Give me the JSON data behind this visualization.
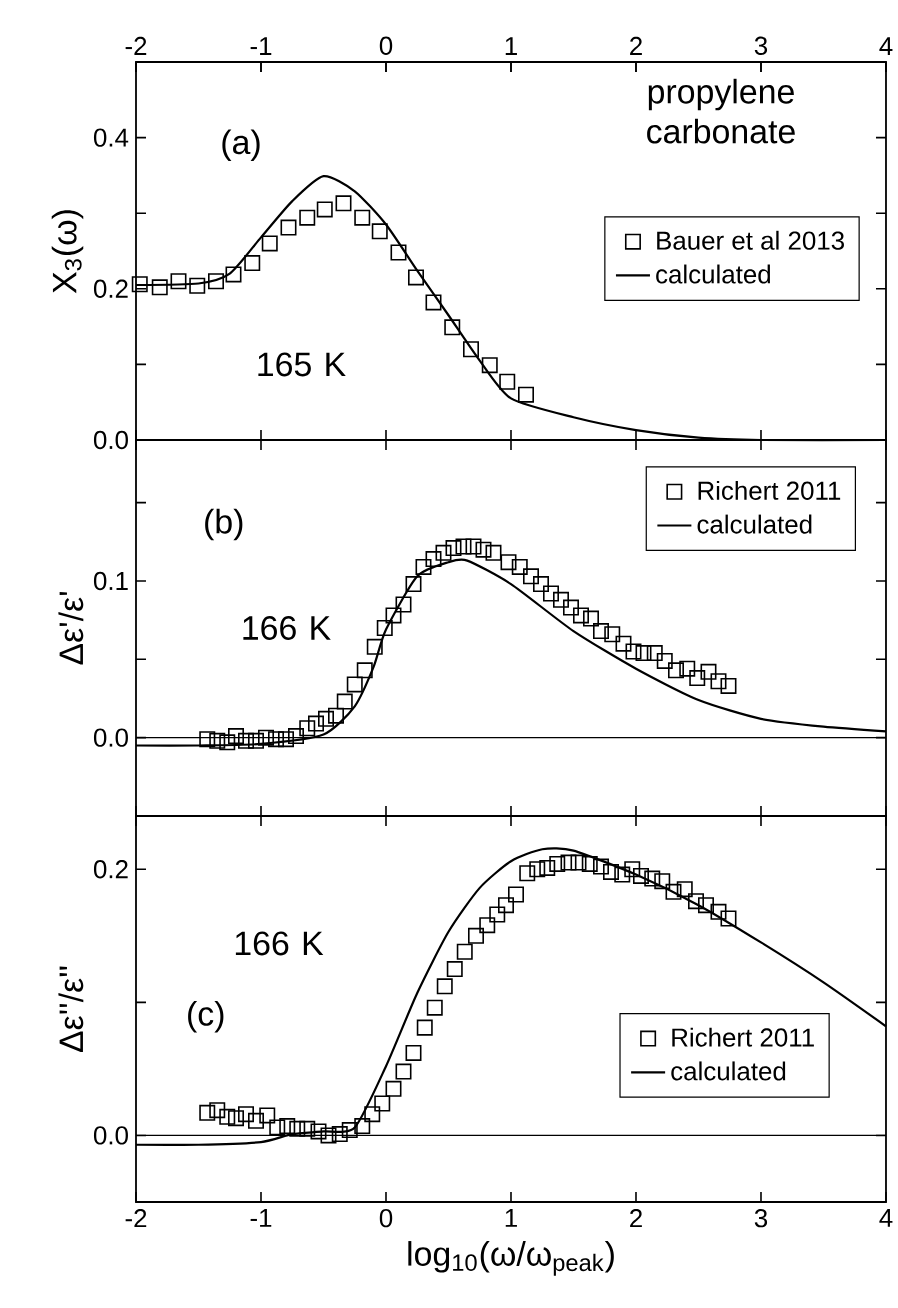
{
  "chart_data": [
    {
      "type": "scatter",
      "ylabel": "X$_{3}$(ω)",
      "xlim": [
        -2,
        4
      ],
      "xticks": [
        -2,
        -1,
        0,
        1,
        2,
        3,
        4
      ],
      "x2lim": [
        -2,
        4
      ],
      "x2ticks": [
        -2,
        -1,
        0,
        1,
        2,
        3,
        4
      ],
      "ylim": [
        0,
        0.5
      ],
      "yticks": [
        {
          "value": 0,
          "label": "0.0"
        },
        {
          "value": 0.1,
          "label": null
        },
        {
          "value": 0.2,
          "label": "0.2"
        },
        {
          "value": 0.3,
          "label": null
        },
        {
          "value": 0.4,
          "label": "0.4"
        }
      ],
      "tick_labels": "y",
      "legend": "right",
      "annotations": [
        "(a)",
        "propylene carbonate",
        "165 K"
      ],
      "series": [
        {
          "name": "Bauer et al 2013",
          "marker": "square",
          "color": "#000000",
          "x": [
            -1.97,
            -1.81,
            -1.66,
            -1.51,
            -1.36,
            -1.22,
            -1.07,
            -0.93,
            -0.78,
            -0.63,
            -0.49,
            -0.34,
            -0.19,
            -0.05,
            0.1,
            0.24,
            0.38,
            0.53,
            0.68,
            0.83,
            0.97,
            1.12
          ],
          "values": [
            0.206,
            0.202,
            0.21,
            0.204,
            0.21,
            0.219,
            0.234,
            0.26,
            0.281,
            0.294,
            0.305,
            0.313,
            0.294,
            0.276,
            0.248,
            0.215,
            0.182,
            0.149,
            0.12,
            0.099,
            0.077,
            0.06
          ]
        },
        {
          "name": "calculated",
          "type": "line",
          "marker": "none",
          "color": "#000000",
          "x": [
            -2,
            -1.5,
            -1.25,
            -1.0,
            -0.75,
            -0.5,
            -0.25,
            0,
            0.25,
            0.5,
            0.75,
            1.0,
            1.5,
            2.0,
            2.5,
            3.0,
            4.0
          ],
          "values": [
            0.205,
            0.207,
            0.22,
            0.268,
            0.316,
            0.349,
            0.329,
            0.285,
            0.224,
            0.165,
            0.105,
            0.055,
            0.03,
            0.013,
            0.003,
            0.0,
            0.0
          ]
        }
      ]
    },
    {
      "type": "scatter",
      "ylabel": "Δε'/ε'",
      "xlim": [
        -2,
        4
      ],
      "xticks": [
        -2,
        -1,
        0,
        1,
        2,
        3,
        4
      ],
      "ylim": [
        -0.05,
        0.19
      ],
      "yticks": [
        {
          "value": -0.05,
          "label": null
        },
        {
          "value": 0,
          "label": "0.0"
        },
        {
          "value": 0.05,
          "label": null
        },
        {
          "value": 0.1,
          "label": "0.1"
        },
        {
          "value": 0.15,
          "label": null
        }
      ],
      "tick_labels": "y",
      "legend": "top right",
      "ref_lines": [
        {
          "axis": "y",
          "value": 0
        }
      ],
      "annotations": [
        "(b)",
        "166 K"
      ],
      "series": [
        {
          "name": "Richert 2011",
          "marker": "square",
          "color": "#000000",
          "x": [
            -1.43,
            -1.35,
            -1.27,
            -1.2,
            -1.12,
            -1.04,
            -0.96,
            -0.88,
            -0.8,
            -0.72,
            -0.63,
            -0.56,
            -0.48,
            -0.4,
            -0.33,
            -0.25,
            -0.17,
            -0.09,
            -0.01,
            0.06,
            0.14,
            0.22,
            0.3,
            0.38,
            0.46,
            0.54,
            0.62,
            0.7,
            0.78,
            0.86,
            0.98,
            1.07,
            1.16,
            1.24,
            1.32,
            1.4,
            1.48,
            1.56,
            1.64,
            1.72,
            1.81,
            1.9,
            1.98,
            2.06,
            2.15,
            2.23,
            2.32,
            2.41,
            2.49,
            2.58,
            2.66,
            2.74
          ],
          "values": [
            -0.001,
            -0.002,
            -0.003,
            0.001,
            -0.002,
            -0.002,
            0.0,
            -0.001,
            -0.001,
            0.001,
            0.006,
            0.009,
            0.012,
            0.014,
            0.023,
            0.034,
            0.043,
            0.058,
            0.07,
            0.078,
            0.085,
            0.098,
            0.109,
            0.114,
            0.118,
            0.121,
            0.122,
            0.122,
            0.12,
            0.118,
            0.112,
            0.109,
            0.103,
            0.098,
            0.092,
            0.088,
            0.083,
            0.078,
            0.076,
            0.068,
            0.066,
            0.06,
            0.055,
            0.054,
            0.054,
            0.049,
            0.043,
            0.044,
            0.038,
            0.042,
            0.036,
            0.033
          ]
        },
        {
          "name": "calculated",
          "type": "line",
          "marker": "none",
          "color": "#000000",
          "x": [
            -2,
            -1.5,
            -1.0,
            -0.5,
            -0.25,
            -0.1,
            0,
            0.25,
            0.5,
            0.65,
            1.0,
            1.5,
            2.0,
            2.5,
            3.0,
            3.5,
            4.0
          ],
          "values": [
            -0.005,
            -0.005,
            -0.004,
            0.002,
            0.02,
            0.045,
            0.069,
            0.103,
            0.112,
            0.113,
            0.098,
            0.068,
            0.044,
            0.024,
            0.012,
            0.007,
            0.004
          ]
        }
      ]
    },
    {
      "type": "scatter",
      "xlabel": "log$_{10}$(ω/ω$_{peak}$)",
      "ylabel": "Δε''/ε''",
      "xlim": [
        -2,
        4
      ],
      "xticks": [
        -2,
        -1,
        0,
        1,
        2,
        3,
        4
      ],
      "ylim": [
        -0.05,
        0.24
      ],
      "yticks": [
        {
          "value": 0,
          "label": "0.0"
        },
        {
          "value": 0.1,
          "label": null
        },
        {
          "value": 0.2,
          "label": "0.2"
        }
      ],
      "legend": "bottom right",
      "ref_lines": [
        {
          "axis": "y",
          "value": 0
        }
      ],
      "annotations": [
        "166 K",
        "(c)"
      ],
      "series": [
        {
          "name": "Richert 2011",
          "marker": "square",
          "color": "#000000",
          "x": [
            -1.43,
            -1.35,
            -1.27,
            -1.2,
            -1.12,
            -1.04,
            -0.95,
            -0.87,
            -0.79,
            -0.71,
            -0.63,
            -0.54,
            -0.46,
            -0.37,
            -0.29,
            -0.19,
            -0.11,
            -0.03,
            0.06,
            0.14,
            0.22,
            0.31,
            0.39,
            0.47,
            0.55,
            0.63,
            0.72,
            0.81,
            0.89,
            0.96,
            1.04,
            1.13,
            1.21,
            1.29,
            1.37,
            1.46,
            1.54,
            1.63,
            1.72,
            1.8,
            1.89,
            1.97,
            2.04,
            2.13,
            2.21,
            2.3,
            2.39,
            2.48,
            2.56,
            2.66,
            2.74
          ],
          "values": [
            0.017,
            0.019,
            0.014,
            0.013,
            0.016,
            0.011,
            0.015,
            0.006,
            0.007,
            0.005,
            0.005,
            0.003,
            0.0,
            0.001,
            0.004,
            0.007,
            0.016,
            0.024,
            0.035,
            0.048,
            0.062,
            0.081,
            0.096,
            0.112,
            0.125,
            0.138,
            0.15,
            0.158,
            0.166,
            0.173,
            0.181,
            0.197,
            0.2,
            0.201,
            0.204,
            0.205,
            0.205,
            0.204,
            0.202,
            0.198,
            0.196,
            0.2,
            0.195,
            0.193,
            0.191,
            0.183,
            0.185,
            0.176,
            0.173,
            0.168,
            0.163
          ]
        },
        {
          "name": "calculated",
          "type": "line",
          "marker": "none",
          "color": "#000000",
          "x": [
            -2,
            -1.5,
            -1.0,
            -0.75,
            -0.5,
            -0.25,
            0,
            0.25,
            0.5,
            0.75,
            1.0,
            1.25,
            1.5,
            2.0,
            2.5,
            3.0,
            3.5,
            4.0
          ],
          "values": [
            -0.007,
            -0.007,
            -0.005,
            0.001,
            0.003,
            0.006,
            0.052,
            0.107,
            0.153,
            0.186,
            0.206,
            0.215,
            0.214,
            0.196,
            0.173,
            0.145,
            0.115,
            0.082
          ]
        }
      ]
    }
  ]
}
